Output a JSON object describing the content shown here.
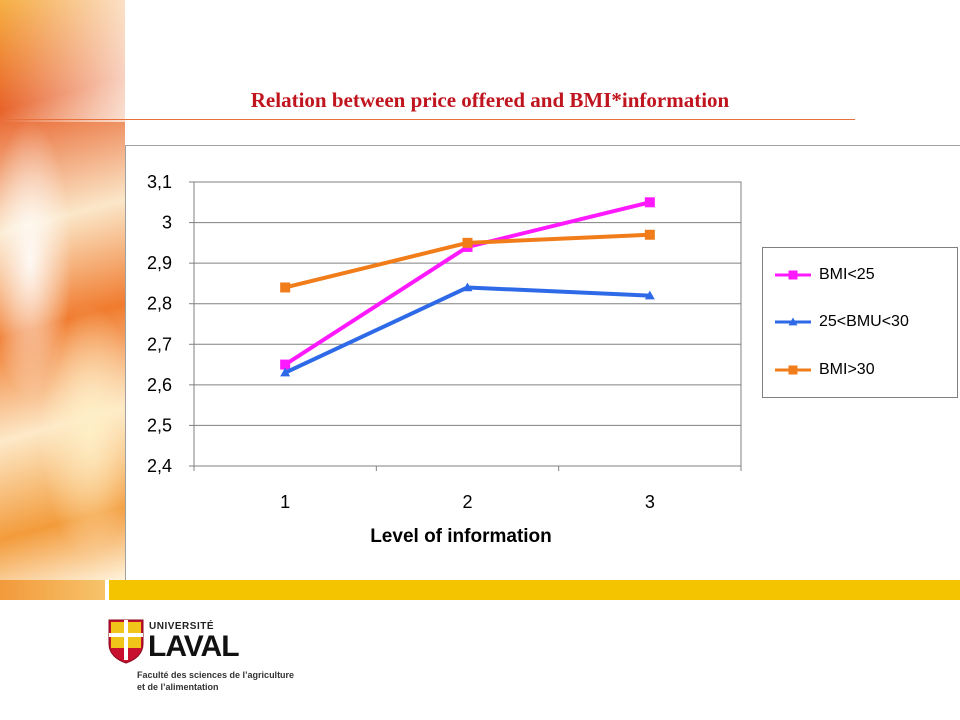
{
  "slide": {
    "title": "Relation between price offered and BMI*information"
  },
  "colors": {
    "title": "#c0141e",
    "series_pink": "#ff19ff",
    "series_blue": "#2e6ae8",
    "series_orange": "#f07d1a",
    "bottom_bar": "#f5c400"
  },
  "chart_data": {
    "type": "line",
    "title": "",
    "xlabel": "Level of information",
    "ylabel": "",
    "categories": [
      "1",
      "2",
      "3"
    ],
    "ylim": [
      2.4,
      3.1
    ],
    "yticks": [
      "2,4",
      "2,5",
      "2,6",
      "2,7",
      "2,8",
      "2,9",
      "3",
      "3,1"
    ],
    "ytick_values": [
      2.4,
      2.5,
      2.6,
      2.7,
      2.8,
      2.9,
      3.0,
      3.1
    ],
    "grid": true,
    "legend_position": "right",
    "series": [
      {
        "name": "BMI<25",
        "values": [
          2.65,
          2.94,
          3.05
        ],
        "color": "#ff19ff",
        "marker": "square"
      },
      {
        "name": "25<BMU<30",
        "values": [
          2.63,
          2.84,
          2.82
        ],
        "color": "#2e6ae8",
        "marker": "triangle"
      },
      {
        "name": "BMI>30",
        "values": [
          2.84,
          2.95,
          2.97
        ],
        "color": "#f07d1a",
        "marker": "square"
      }
    ]
  },
  "logo": {
    "university_small": "UNIVERSITÉ",
    "university_large": "LAVAL",
    "faculty_line1": "Faculté des sciences de l’agriculture",
    "faculty_line2": "et de l’alimentation"
  }
}
